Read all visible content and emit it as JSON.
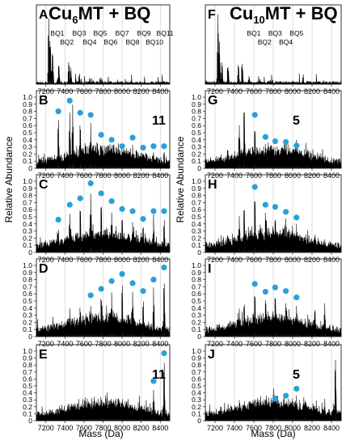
{
  "figure": {
    "left_title": {
      "main": "Cu",
      "sub": "6",
      "rest": "MT + BQ"
    },
    "right_title": {
      "main": "Cu",
      "sub": "10",
      "rest": "MT + BQ"
    },
    "ylabel": "Relative Abundance",
    "xlabel": "Mass (Da)",
    "bq_labels": [
      {
        "label": "BQ1",
        "mass": 7320,
        "row": 0
      },
      {
        "label": "BQ2",
        "mass": 7420,
        "row": 1
      },
      {
        "label": "BQ3",
        "mass": 7550,
        "row": 0
      },
      {
        "label": "BQ4",
        "mass": 7660,
        "row": 1
      },
      {
        "label": "BQ5",
        "mass": 7770,
        "row": 0
      },
      {
        "label": "BQ6",
        "mass": 7880,
        "row": 1
      },
      {
        "label": "BQ7",
        "mass": 8000,
        "row": 0
      },
      {
        "label": "BQ8",
        "mass": 8110,
        "row": 1
      },
      {
        "label": "BQ9",
        "mass": 8230,
        "row": 0
      },
      {
        "label": "BQ10",
        "mass": 8340,
        "row": 1
      },
      {
        "label": "BQ11",
        "mass": 8450,
        "row": 0
      }
    ],
    "bq_labels_right": [
      {
        "label": "BQ1",
        "mass": 7600,
        "row": 0
      },
      {
        "label": "BQ2",
        "mass": 7710,
        "row": 1
      },
      {
        "label": "BQ3",
        "mass": 7820,
        "row": 0
      },
      {
        "label": "BQ4",
        "mass": 7930,
        "row": 1
      },
      {
        "label": "BQ5",
        "mass": 8040,
        "row": 0
      }
    ]
  },
  "chart_data": [
    {
      "type": "line",
      "panel": "A",
      "column": "left",
      "title": "",
      "xlabel": "Mass (Da)",
      "ylabel": "Relative Abundance",
      "xlim": [
        7100,
        8500
      ],
      "ylim": [
        0,
        1
      ],
      "xticks": [
        7200,
        7400,
        7600,
        7800,
        8000,
        8200,
        8400
      ],
      "yticks": [],
      "annotation": "",
      "markers": [],
      "peaks": [
        {
          "x": 7230,
          "y": 1.0
        },
        {
          "x": 7245,
          "y": 0.7
        },
        {
          "x": 7270,
          "y": 0.45
        },
        {
          "x": 7335,
          "y": 0.3
        },
        {
          "x": 7440,
          "y": 0.35
        },
        {
          "x": 7460,
          "y": 0.25
        },
        {
          "x": 7550,
          "y": 0.15
        },
        {
          "x": 7660,
          "y": 0.1
        },
        {
          "x": 7770,
          "y": 0.06
        },
        {
          "x": 7880,
          "y": 0.05
        },
        {
          "x": 8000,
          "y": 0.04
        },
        {
          "x": 8230,
          "y": 0.03
        }
      ]
    },
    {
      "type": "line",
      "panel": "B",
      "column": "left",
      "title": "",
      "xlabel": "Mass (Da)",
      "ylabel": "Relative Abundance",
      "xlim": [
        7100,
        8500
      ],
      "ylim": [
        0,
        1
      ],
      "xticks": [
        7200,
        7400,
        7600,
        7800,
        8000,
        8200,
        8400
      ],
      "yticks": [
        0,
        0.1,
        0.2,
        0.3,
        0.4,
        0.5,
        0.6,
        0.7,
        0.8,
        0.9,
        1.0
      ],
      "annotation": "11",
      "markers": [
        {
          "x": 7330,
          "y": 0.8
        },
        {
          "x": 7450,
          "y": 0.95
        },
        {
          "x": 7560,
          "y": 0.78
        },
        {
          "x": 7670,
          "y": 0.75
        },
        {
          "x": 7780,
          "y": 0.47
        },
        {
          "x": 7890,
          "y": 0.4
        },
        {
          "x": 8000,
          "y": 0.31
        },
        {
          "x": 8110,
          "y": 0.43
        },
        {
          "x": 8220,
          "y": 0.29
        },
        {
          "x": 8330,
          "y": 0.31
        },
        {
          "x": 8440,
          "y": 0.31
        }
      ],
      "peaks": [
        {
          "x": 7330,
          "y": 0.72
        },
        {
          "x": 7450,
          "y": 0.85
        },
        {
          "x": 7480,
          "y": 0.9
        },
        {
          "x": 7560,
          "y": 0.7
        },
        {
          "x": 7670,
          "y": 0.66
        },
        {
          "x": 7780,
          "y": 0.4
        },
        {
          "x": 7890,
          "y": 0.33
        },
        {
          "x": 8000,
          "y": 0.27
        },
        {
          "x": 8110,
          "y": 0.35
        },
        {
          "x": 8220,
          "y": 0.22
        },
        {
          "x": 8330,
          "y": 0.24
        },
        {
          "x": 8440,
          "y": 0.25
        }
      ]
    },
    {
      "type": "line",
      "panel": "C",
      "column": "left",
      "title": "",
      "xlabel": "Mass (Da)",
      "ylabel": "Relative Abundance",
      "xlim": [
        7100,
        8500
      ],
      "ylim": [
        0,
        1
      ],
      "xticks": [
        7200,
        7400,
        7600,
        7800,
        8000,
        8200,
        8400
      ],
      "yticks": [
        0,
        0.1,
        0.2,
        0.3,
        0.4,
        0.5,
        0.6,
        0.7,
        0.8,
        0.9,
        1.0
      ],
      "annotation": "",
      "markers": [
        {
          "x": 7330,
          "y": 0.46
        },
        {
          "x": 7450,
          "y": 0.67
        },
        {
          "x": 7560,
          "y": 0.76
        },
        {
          "x": 7670,
          "y": 0.97
        },
        {
          "x": 7780,
          "y": 0.83
        },
        {
          "x": 7890,
          "y": 0.72
        },
        {
          "x": 8000,
          "y": 0.61
        },
        {
          "x": 8110,
          "y": 0.58
        },
        {
          "x": 8220,
          "y": 0.47
        },
        {
          "x": 8330,
          "y": 0.58
        },
        {
          "x": 8440,
          "y": 0.58
        }
      ],
      "peaks": [
        {
          "x": 7330,
          "y": 0.38
        },
        {
          "x": 7450,
          "y": 0.6
        },
        {
          "x": 7560,
          "y": 0.68
        },
        {
          "x": 7670,
          "y": 0.9
        },
        {
          "x": 7780,
          "y": 0.75
        },
        {
          "x": 7890,
          "y": 0.64
        },
        {
          "x": 8000,
          "y": 0.55
        },
        {
          "x": 8110,
          "y": 0.5
        },
        {
          "x": 8220,
          "y": 0.4
        },
        {
          "x": 8330,
          "y": 0.5
        },
        {
          "x": 8440,
          "y": 0.5
        }
      ]
    },
    {
      "type": "line",
      "panel": "D",
      "column": "left",
      "title": "",
      "xlabel": "Mass (Da)",
      "ylabel": "Relative Abundance",
      "xlim": [
        7100,
        8500
      ],
      "ylim": [
        0,
        1
      ],
      "xticks": [
        7200,
        7400,
        7600,
        7800,
        8000,
        8200,
        8400
      ],
      "yticks": [
        0,
        0.1,
        0.2,
        0.3,
        0.4,
        0.5,
        0.6,
        0.7,
        0.8,
        0.9,
        1.0
      ],
      "annotation": "",
      "markers": [
        {
          "x": 7670,
          "y": 0.58
        },
        {
          "x": 7780,
          "y": 0.67
        },
        {
          "x": 7890,
          "y": 0.78
        },
        {
          "x": 8000,
          "y": 0.88
        },
        {
          "x": 8110,
          "y": 0.75
        },
        {
          "x": 8220,
          "y": 0.64
        },
        {
          "x": 8330,
          "y": 0.8
        },
        {
          "x": 8440,
          "y": 0.97
        }
      ],
      "peaks": [
        {
          "x": 7450,
          "y": 0.45
        },
        {
          "x": 7560,
          "y": 0.45
        },
        {
          "x": 7670,
          "y": 0.5
        },
        {
          "x": 7780,
          "y": 0.6
        },
        {
          "x": 7890,
          "y": 0.7
        },
        {
          "x": 8000,
          "y": 0.8
        },
        {
          "x": 8110,
          "y": 0.68
        },
        {
          "x": 8220,
          "y": 0.56
        },
        {
          "x": 8330,
          "y": 0.72
        },
        {
          "x": 8440,
          "y": 0.9
        }
      ]
    },
    {
      "type": "line",
      "panel": "E",
      "column": "left",
      "title": "",
      "xlabel": "Mass (Da)",
      "ylabel": "Relative Abundance",
      "xlim": [
        7100,
        8500
      ],
      "ylim": [
        0,
        1
      ],
      "xticks": [
        7200,
        7400,
        7600,
        7800,
        8000,
        8200,
        8400
      ],
      "yticks": [
        0,
        0.1,
        0.2,
        0.3,
        0.4,
        0.5,
        0.6,
        0.7,
        0.8,
        0.9,
        1.0
      ],
      "annotation": "11",
      "markers": [
        {
          "x": 8330,
          "y": 0.57
        },
        {
          "x": 8440,
          "y": 0.97
        }
      ],
      "peaks": [
        {
          "x": 7780,
          "y": 0.18
        },
        {
          "x": 7890,
          "y": 0.15
        },
        {
          "x": 8000,
          "y": 0.12
        },
        {
          "x": 8110,
          "y": 0.14
        },
        {
          "x": 8220,
          "y": 0.2
        },
        {
          "x": 8330,
          "y": 0.5
        },
        {
          "x": 8440,
          "y": 0.9
        }
      ]
    },
    {
      "type": "line",
      "panel": "F",
      "column": "right",
      "title": "",
      "xlabel": "Mass (Da)",
      "ylabel": "Relative Abundance",
      "xlim": [
        7100,
        8500
      ],
      "ylim": [
        0,
        1
      ],
      "xticks": [
        7200,
        7400,
        7600,
        7800,
        8000,
        8200,
        8400
      ],
      "yticks": [],
      "annotation": "",
      "markers": [],
      "peaks": [
        {
          "x": 7230,
          "y": 1.0
        },
        {
          "x": 7245,
          "y": 0.6
        },
        {
          "x": 7270,
          "y": 0.35
        },
        {
          "x": 7335,
          "y": 0.25
        },
        {
          "x": 7440,
          "y": 0.3
        },
        {
          "x": 7480,
          "y": 0.3
        },
        {
          "x": 7550,
          "y": 0.12
        },
        {
          "x": 7660,
          "y": 0.08
        },
        {
          "x": 7770,
          "y": 0.06
        },
        {
          "x": 7880,
          "y": 0.04
        },
        {
          "x": 8000,
          "y": 0.03
        }
      ]
    },
    {
      "type": "line",
      "panel": "G",
      "column": "right",
      "title": "",
      "xlabel": "Mass (Da)",
      "ylabel": "Relative Abundance",
      "xlim": [
        7100,
        8500
      ],
      "ylim": [
        0,
        1
      ],
      "xticks": [
        7200,
        7400,
        7600,
        7800,
        8000,
        8200,
        8400
      ],
      "yticks": [
        0,
        0.1,
        0.2,
        0.3,
        0.4,
        0.5,
        0.6,
        0.7,
        0.8,
        0.9,
        1.0
      ],
      "annotation": "5",
      "markers": [
        {
          "x": 7610,
          "y": 0.75
        },
        {
          "x": 7720,
          "y": 0.44
        },
        {
          "x": 7820,
          "y": 0.38
        },
        {
          "x": 7930,
          "y": 0.37
        },
        {
          "x": 8040,
          "y": 0.32
        }
      ],
      "peaks": [
        {
          "x": 7330,
          "y": 0.3
        },
        {
          "x": 7450,
          "y": 0.7
        },
        {
          "x": 7500,
          "y": 0.95
        },
        {
          "x": 7610,
          "y": 0.67
        },
        {
          "x": 7720,
          "y": 0.4
        },
        {
          "x": 7820,
          "y": 0.32
        },
        {
          "x": 7930,
          "y": 0.3
        },
        {
          "x": 8040,
          "y": 0.26
        },
        {
          "x": 8230,
          "y": 0.2
        }
      ]
    },
    {
      "type": "line",
      "panel": "H",
      "column": "right",
      "title": "",
      "xlabel": "Mass (Da)",
      "ylabel": "Relative Abundance",
      "xlim": [
        7100,
        8500
      ],
      "ylim": [
        0,
        1
      ],
      "xticks": [
        7200,
        7400,
        7600,
        7800,
        8000,
        8200,
        8400
      ],
      "yticks": [
        0,
        0.1,
        0.2,
        0.3,
        0.4,
        0.5,
        0.6,
        0.7,
        0.8,
        0.9,
        1.0
      ],
      "annotation": "",
      "markers": [
        {
          "x": 7610,
          "y": 0.92
        },
        {
          "x": 7720,
          "y": 0.67
        },
        {
          "x": 7820,
          "y": 0.64
        },
        {
          "x": 7930,
          "y": 0.57
        },
        {
          "x": 8040,
          "y": 0.49
        }
      ],
      "peaks": [
        {
          "x": 7330,
          "y": 0.3
        },
        {
          "x": 7450,
          "y": 0.55
        },
        {
          "x": 7500,
          "y": 0.75
        },
        {
          "x": 7610,
          "y": 0.85
        },
        {
          "x": 7720,
          "y": 0.6
        },
        {
          "x": 7820,
          "y": 0.56
        },
        {
          "x": 7930,
          "y": 0.5
        },
        {
          "x": 8040,
          "y": 0.43
        },
        {
          "x": 8230,
          "y": 0.28
        }
      ]
    },
    {
      "type": "line",
      "panel": "I",
      "column": "right",
      "title": "",
      "xlabel": "Mass (Da)",
      "ylabel": "Relative Abundance",
      "xlim": [
        7100,
        8500
      ],
      "ylim": [
        0,
        1
      ],
      "xticks": [
        7200,
        7400,
        7600,
        7800,
        8000,
        8200,
        8400
      ],
      "yticks": [
        0,
        0.1,
        0.2,
        0.3,
        0.4,
        0.5,
        0.6,
        0.7,
        0.8,
        0.9,
        1.0
      ],
      "annotation": "",
      "markers": [
        {
          "x": 7610,
          "y": 0.74
        },
        {
          "x": 7720,
          "y": 0.63
        },
        {
          "x": 7820,
          "y": 0.69
        },
        {
          "x": 7930,
          "y": 0.64
        },
        {
          "x": 8040,
          "y": 0.55
        }
      ],
      "peaks": [
        {
          "x": 7450,
          "y": 0.4
        },
        {
          "x": 7500,
          "y": 0.55
        },
        {
          "x": 7610,
          "y": 0.66
        },
        {
          "x": 7720,
          "y": 0.56
        },
        {
          "x": 7820,
          "y": 0.62
        },
        {
          "x": 7930,
          "y": 0.57
        },
        {
          "x": 8040,
          "y": 0.5
        },
        {
          "x": 8230,
          "y": 0.45
        },
        {
          "x": 8330,
          "y": 0.5
        }
      ]
    },
    {
      "type": "line",
      "panel": "J",
      "column": "right",
      "title": "",
      "xlabel": "Mass (Da)",
      "ylabel": "Relative Abundance",
      "xlim": [
        7100,
        8500
      ],
      "ylim": [
        0,
        1
      ],
      "xticks": [
        7200,
        7400,
        7600,
        7800,
        8000,
        8200,
        8400
      ],
      "yticks": [
        0,
        0.1,
        0.2,
        0.3,
        0.4,
        0.5,
        0.6,
        0.7,
        0.8,
        0.9,
        1.0
      ],
      "annotation": "5",
      "markers": [
        {
          "x": 7820,
          "y": 0.32
        },
        {
          "x": 7930,
          "y": 0.36
        },
        {
          "x": 8040,
          "y": 0.46
        }
      ],
      "peaks": [
        {
          "x": 7720,
          "y": 0.15
        },
        {
          "x": 7820,
          "y": 0.26
        },
        {
          "x": 7930,
          "y": 0.3
        },
        {
          "x": 8040,
          "y": 0.4
        },
        {
          "x": 8230,
          "y": 0.25
        },
        {
          "x": 8330,
          "y": 0.3
        },
        {
          "x": 8440,
          "y": 0.97
        }
      ]
    }
  ]
}
